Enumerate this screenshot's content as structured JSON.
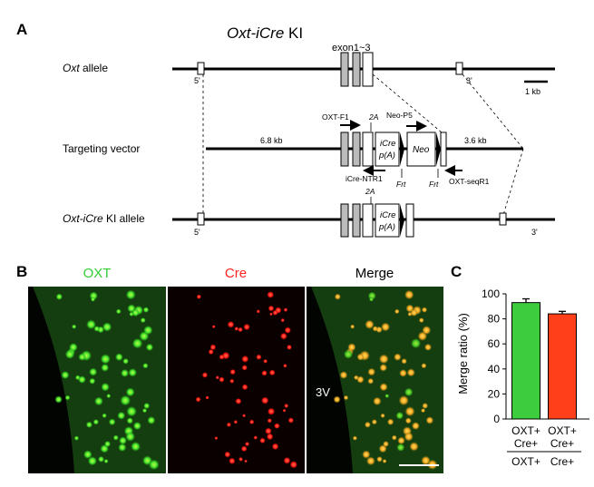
{
  "panel_a": {
    "letter": "A",
    "title_italic": "Oxt-iCre",
    "title_rest": " KI",
    "exon_label": "exon1~3",
    "rows": [
      {
        "label_italic": "Oxt",
        "label_rest": " allele"
      },
      {
        "label_italic": "",
        "label_rest": "Targeting vector"
      },
      {
        "label_italic": "Oxt-iCre",
        "label_rest": " KI allele"
      }
    ],
    "five_prime": "5'",
    "three_prime": "3'",
    "scale_label": "1 kb",
    "arm_left": "6.8 kb",
    "arm_right": "3.6 kb",
    "primers": {
      "oxt_f1": "OXT-F1",
      "neo_p5": "Neo-P5",
      "icre_ntr1": "iCre-NTR1",
      "oxt_seqr1": "OXT-seqR1"
    },
    "two_a": "2A",
    "icre_line1": "iCre",
    "icre_line2": "p(A)",
    "neo": "Neo",
    "frt": "Frt"
  },
  "panel_b": {
    "letter": "B",
    "channels": [
      {
        "title": "OXT",
        "color": "#33cc33"
      },
      {
        "title": "Cre",
        "color": "#ff2222"
      },
      {
        "title": "Merge",
        "color": "#000000"
      }
    ],
    "ventricle_label": "3V"
  },
  "panel_c": {
    "letter": "C",
    "chart_data": {
      "type": "bar",
      "categories": [
        "OXT+ Cre+ / OXT+",
        "OXT+ Cre+ / Cre+"
      ],
      "cat_top": [
        "OXT+",
        "OXT+"
      ],
      "cat_mid": [
        "Cre+",
        "Cre+"
      ],
      "cat_bottom": [
        "OXT+",
        "Cre+"
      ],
      "values": [
        93,
        84
      ],
      "errors": [
        3,
        2
      ],
      "colors": [
        "#3dcc3d",
        "#ff3f1a"
      ],
      "ylabel": "Merge ratio (%)",
      "ylim": [
        0,
        100
      ],
      "yticks": [
        0,
        20,
        40,
        60,
        80,
        100
      ],
      "grid": false
    }
  }
}
